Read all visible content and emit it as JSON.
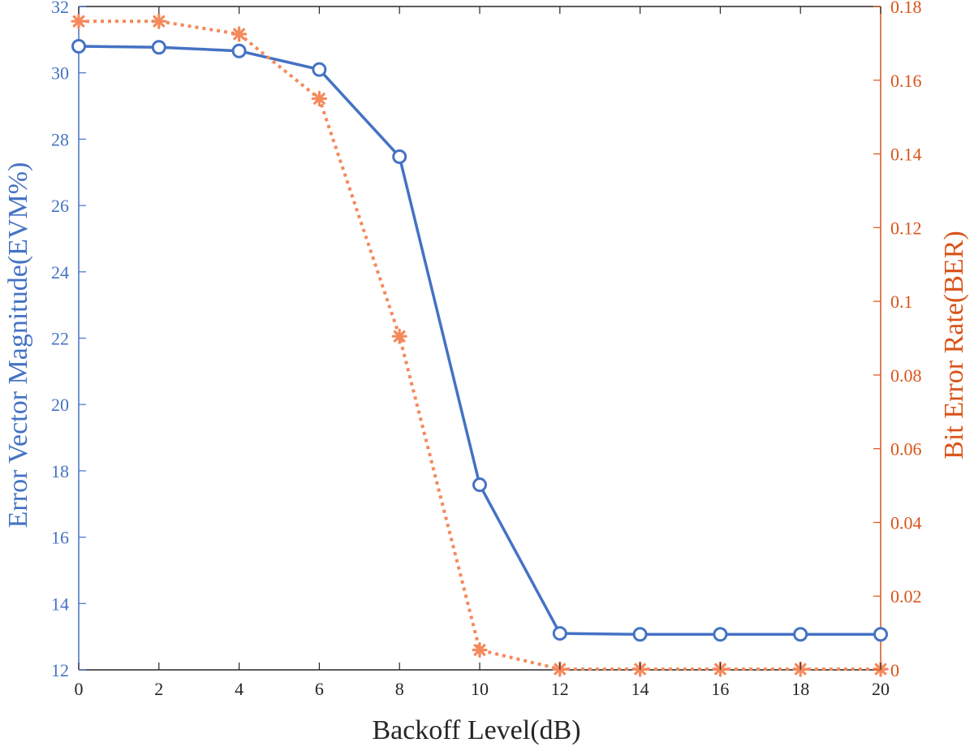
{
  "chart_data": {
    "type": "line",
    "xlabel": "Backoff Level(dB)",
    "ylabel_left": "Error Vector Magnitude(EVM%)",
    "ylabel_right": "Bit Error Rate(BER)",
    "x": [
      0,
      2,
      4,
      6,
      8,
      10,
      12,
      14,
      16,
      18,
      20
    ],
    "xlim": [
      0,
      20
    ],
    "ylim_left": [
      12,
      32
    ],
    "ylim_right": [
      0,
      0.18
    ],
    "x_ticks": [
      "0",
      "2",
      "4",
      "6",
      "8",
      "10",
      "12",
      "14",
      "16",
      "18",
      "20"
    ],
    "y_ticks_left": [
      "12",
      "14",
      "16",
      "18",
      "20",
      "22",
      "24",
      "26",
      "28",
      "30",
      "32"
    ],
    "y_ticks_right": [
      "0",
      "0.02",
      "0.04",
      "0.06",
      "0.08",
      "0.1",
      "0.12",
      "0.14",
      "0.16",
      "0.18"
    ],
    "grid": false,
    "legend": "none",
    "series": [
      {
        "axis": "left",
        "style": "solid",
        "marker": "circle",
        "color": "#4472C4",
        "values": [
          30.8,
          30.77,
          30.66,
          30.1,
          27.47,
          17.58,
          13.1,
          13.07,
          13.07,
          13.07,
          13.07
        ]
      },
      {
        "axis": "right",
        "style": "dotted",
        "marker": "asterisk",
        "color": "#F4895C",
        "values": [
          0.176,
          0.176,
          0.1725,
          0.155,
          0.0905,
          0.0054,
          0.0002,
          0.0002,
          0.0002,
          0.0002,
          0.0002
        ]
      }
    ],
    "colors": {
      "left_axis": "#4472C4",
      "right_axis": "#D95319",
      "frame": "#262626"
    }
  }
}
